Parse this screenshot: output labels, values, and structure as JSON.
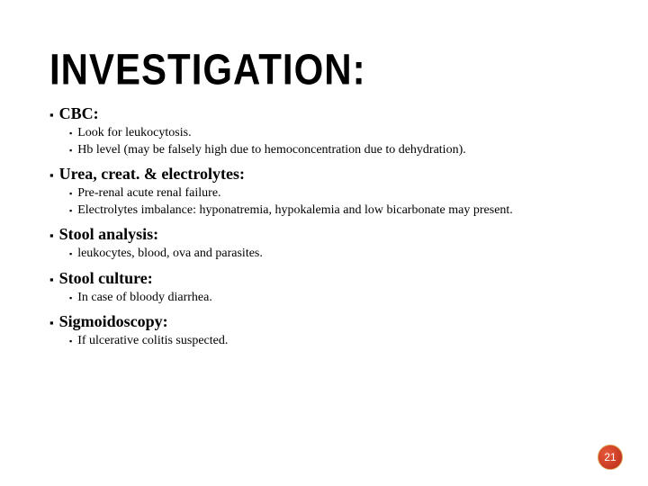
{
  "title": "INVESTIGATION:",
  "sections": [
    {
      "heading": "CBC:",
      "items": [
        "Look for leukocytosis.",
        "Hb level (may be falsely high due to hemoconcentration due to dehydration)."
      ]
    },
    {
      "heading": "Urea, creat. & electrolytes:",
      "items": [
        "Pre-renal acute renal failure.",
        "Electrolytes imbalance: hyponatremia, hypokalemia and low bicarbonate may present."
      ]
    },
    {
      "heading": "Stool analysis:",
      "items": [
        "leukocytes, blood, ova and parasites."
      ]
    },
    {
      "heading": "Stool culture:",
      "items": [
        "In case of bloody diarrhea."
      ]
    },
    {
      "heading": "Sigmoidoscopy:",
      "items": [
        "If ulcerative colitis suspected."
      ]
    }
  ],
  "page_number": "21",
  "colors": {
    "text": "#000000",
    "background": "#ffffff",
    "badge_fill_light": "#e85a3a",
    "badge_fill_dark": "#b82818",
    "badge_border": "#d8a050",
    "badge_text": "#ffffff"
  },
  "typography": {
    "title_fontsize": 42,
    "title_weight": 900,
    "section_fontsize": 18,
    "section_weight": "bold",
    "body_fontsize": 14
  }
}
